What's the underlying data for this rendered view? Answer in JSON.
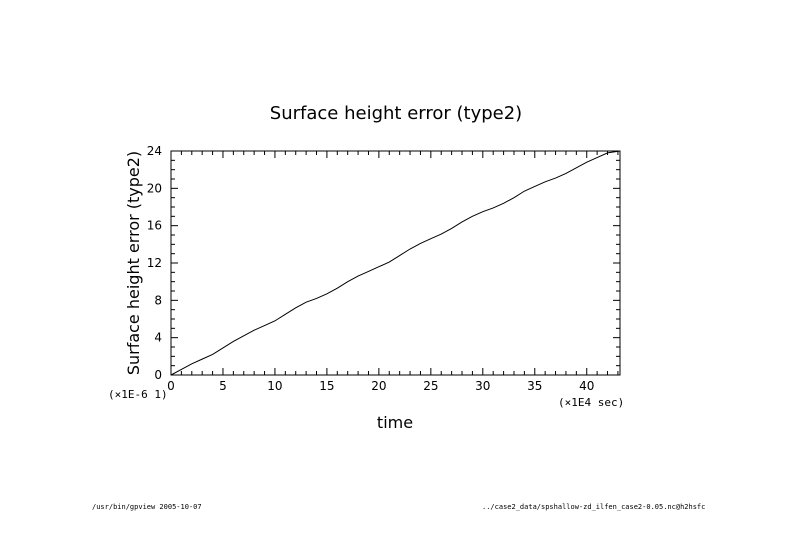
{
  "chart_data": {
    "type": "line",
    "title": "Surface height error (type2)",
    "xlabel": "time",
    "ylabel": "Surface height error (type2)",
    "x_multiplier": "(×1E4 sec)",
    "y_multiplier": "(×1E-6 1)",
    "xlim": [
      0,
      43.2
    ],
    "ylim": [
      0,
      24
    ],
    "xticks": [
      0,
      5,
      10,
      15,
      20,
      25,
      30,
      35,
      40
    ],
    "yticks": [
      0,
      4,
      8,
      12,
      16,
      20,
      24
    ],
    "grid": false,
    "series": [
      {
        "x": [
          0,
          1,
          2,
          3,
          4,
          5,
          6,
          7,
          8,
          9,
          10,
          11,
          12,
          13,
          14,
          15,
          16,
          17,
          18,
          19,
          20,
          21,
          22,
          23,
          24,
          25,
          26,
          27,
          28,
          29,
          30,
          31,
          32,
          33,
          34,
          35,
          36,
          37,
          38,
          39,
          40,
          41,
          42,
          43.2
        ],
        "y": [
          0,
          0.6,
          1.2,
          1.7,
          2.2,
          2.9,
          3.6,
          4.2,
          4.8,
          5.3,
          5.8,
          6.5,
          7.2,
          7.8,
          8.2,
          8.7,
          9.3,
          10.0,
          10.6,
          11.1,
          11.6,
          12.1,
          12.8,
          13.5,
          14.1,
          14.6,
          15.1,
          15.7,
          16.4,
          17.0,
          17.5,
          17.9,
          18.4,
          19.0,
          19.7,
          20.2,
          20.7,
          21.1,
          21.6,
          22.2,
          22.8,
          23.3,
          23.8,
          24.0
        ],
        "color": "#000000"
      }
    ]
  },
  "footer": {
    "left": "/usr/bin/gpview  2005-10-07",
    "right": "../case2_data/spshallow-zd_ilfen_case2-0.05.nc@h2hsfc"
  }
}
